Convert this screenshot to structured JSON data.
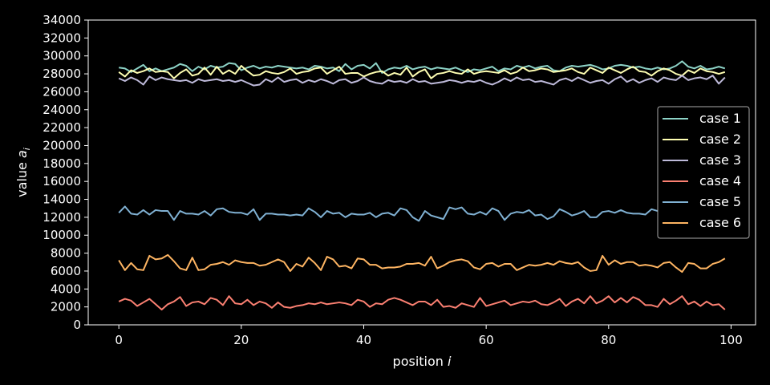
{
  "chart_data": {
    "type": "line",
    "xlabel": "position i",
    "ylabel": "value a_i",
    "xlim": [
      -5,
      104
    ],
    "ylim": [
      0,
      34000
    ],
    "xticks": [
      0,
      20,
      40,
      60,
      80,
      100
    ],
    "yticks": [
      0,
      2000,
      4000,
      6000,
      8000,
      10000,
      12000,
      14000,
      16000,
      18000,
      20000,
      22000,
      24000,
      26000,
      28000,
      30000,
      32000,
      34000
    ],
    "grid": false,
    "legend_position": "center-right",
    "series": [
      {
        "name": "case 1",
        "color": "#8dd3c7",
        "values": [
          28700,
          28600,
          28200,
          28600,
          29000,
          28300,
          28600,
          28300,
          28500,
          28700,
          29100,
          28900,
          28300,
          28800,
          28500,
          28900,
          28700,
          28800,
          29200,
          29100,
          28400,
          28700,
          28900,
          28600,
          28800,
          28700,
          28900,
          28800,
          28700,
          28600,
          28700,
          28500,
          28900,
          28800,
          28600,
          28700,
          28300,
          29100,
          28500,
          28900,
          29000,
          28600,
          29200,
          28100,
          28500,
          28700,
          28600,
          28900,
          28500,
          28700,
          28800,
          28500,
          28700,
          28600,
          28500,
          28700,
          28400,
          28200,
          28500,
          28400,
          28600,
          28800,
          28300,
          28600,
          28500,
          28900,
          28700,
          28900,
          28600,
          28800,
          28900,
          28400,
          28300,
          28700,
          28900,
          28800,
          28900,
          29000,
          28800,
          28500,
          28600,
          28900,
          29000,
          28900,
          28700,
          28800,
          28600,
          28500,
          28700,
          28500,
          28600,
          28900,
          29400,
          28800,
          28600,
          28900,
          28500,
          28600,
          28800,
          28600
        ]
      },
      {
        "name": "case 2",
        "color": "#ffffb3",
        "values": [
          28200,
          27700,
          28400,
          28100,
          28300,
          28600,
          28200,
          28300,
          28200,
          27500,
          28100,
          28500,
          27800,
          28000,
          28700,
          27900,
          28800,
          28000,
          28400,
          28000,
          28900,
          28300,
          27800,
          27900,
          28300,
          28100,
          28000,
          28200,
          28600,
          28000,
          28200,
          28300,
          28600,
          28700,
          28000,
          28400,
          28800,
          28000,
          28100,
          28100,
          27700,
          28000,
          28200,
          28300,
          27800,
          28100,
          27900,
          28700,
          27700,
          28200,
          28500,
          27500,
          28000,
          28100,
          28300,
          28100,
          28000,
          28500,
          28000,
          28200,
          28300,
          28200,
          28100,
          28400,
          28000,
          28200,
          28700,
          28300,
          28400,
          28600,
          28500,
          28200,
          28300,
          28400,
          28600,
          28200,
          28000,
          28700,
          28400,
          28100,
          28700,
          28400,
          28100,
          28500,
          28800,
          28300,
          28200,
          27800,
          28300,
          28600,
          28400,
          28000,
          27800,
          28400,
          28100,
          28600,
          28300,
          28200,
          28000,
          28200
        ]
      },
      {
        "name": "case 3",
        "color": "#bebada",
        "values": [
          27500,
          27200,
          27600,
          27300,
          26800,
          27700,
          27300,
          27600,
          27400,
          27300,
          27200,
          27300,
          27000,
          27400,
          27200,
          27300,
          27400,
          27200,
          27300,
          27100,
          27300,
          27000,
          26700,
          26800,
          27400,
          27100,
          27600,
          27100,
          27300,
          27400,
          27000,
          27300,
          27100,
          27400,
          27200,
          26900,
          27300,
          27400,
          27000,
          27200,
          27600,
          27200,
          27000,
          26900,
          27300,
          27100,
          27200,
          27000,
          27400,
          27100,
          27200,
          26900,
          27000,
          27100,
          27300,
          27200,
          27000,
          27200,
          27100,
          27300,
          27000,
          26800,
          27100,
          27500,
          27200,
          27600,
          27300,
          27400,
          27100,
          27200,
          27000,
          26800,
          27300,
          27500,
          27200,
          27600,
          27300,
          27000,
          27200,
          27300,
          26900,
          27400,
          27700,
          27100,
          27400,
          27000,
          27300,
          27500,
          27100,
          27600,
          27400,
          27300,
          27800,
          27300,
          27500,
          27600,
          27400,
          27800,
          26900,
          27600
        ]
      },
      {
        "name": "case 4",
        "color": "#fb8072",
        "values": [
          2600,
          2900,
          2700,
          2100,
          2500,
          2900,
          2300,
          1700,
          2300,
          2600,
          3100,
          2100,
          2500,
          2600,
          2300,
          3000,
          2800,
          2200,
          3200,
          2400,
          2300,
          2800,
          2200,
          2600,
          2400,
          1900,
          2500,
          2000,
          1900,
          2100,
          2200,
          2400,
          2300,
          2500,
          2300,
          2400,
          2500,
          2400,
          2200,
          2800,
          2600,
          2000,
          2400,
          2300,
          2800,
          3000,
          2800,
          2500,
          2200,
          2600,
          2600,
          2200,
          2800,
          2000,
          2100,
          1900,
          2400,
          2200,
          2000,
          3000,
          2100,
          2300,
          2500,
          2700,
          2200,
          2400,
          2600,
          2500,
          2700,
          2300,
          2200,
          2500,
          2900,
          2100,
          2600,
          2900,
          2400,
          3200,
          2400,
          2700,
          3200,
          2500,
          3000,
          2500,
          3100,
          2800,
          2200,
          2200,
          2000,
          2900,
          2300,
          2700,
          3200,
          2300,
          2600,
          2100,
          2600,
          2200,
          2300,
          1700
        ]
      },
      {
        "name": "case 5",
        "color": "#80b1d3",
        "values": [
          12500,
          13200,
          12400,
          12300,
          12800,
          12300,
          12800,
          12700,
          12700,
          11700,
          12700,
          12400,
          12400,
          12300,
          12700,
          12200,
          12900,
          13000,
          12600,
          12500,
          12500,
          12300,
          12900,
          11700,
          12400,
          12400,
          12300,
          12300,
          12200,
          12300,
          12200,
          13000,
          12600,
          12000,
          12700,
          12400,
          12500,
          12000,
          12400,
          12300,
          12300,
          12500,
          12000,
          12400,
          12500,
          12200,
          13000,
          12800,
          12000,
          11600,
          12700,
          12200,
          12000,
          11800,
          13100,
          12900,
          13100,
          12400,
          12300,
          12600,
          12300,
          13000,
          12700,
          11700,
          12400,
          12600,
          12500,
          12800,
          12200,
          12300,
          11800,
          12100,
          12900,
          12600,
          12200,
          12400,
          12700,
          12000,
          12000,
          12600,
          12700,
          12500,
          12800,
          12500,
          12400,
          12400,
          12300,
          12900,
          12700,
          12500,
          12700,
          12900,
          12400,
          12700,
          12200,
          12700,
          12900,
          12100,
          12500,
          12800
        ]
      },
      {
        "name": "case 6",
        "color": "#fdb462",
        "values": [
          7200,
          6100,
          6900,
          6200,
          6100,
          7700,
          7300,
          7400,
          7800,
          7100,
          6300,
          6100,
          7500,
          6100,
          6200,
          6700,
          6800,
          7000,
          6700,
          7200,
          7000,
          6900,
          6900,
          6600,
          6700,
          7000,
          7300,
          7000,
          6000,
          6800,
          6500,
          7500,
          6900,
          6100,
          7600,
          7300,
          6500,
          6600,
          6300,
          7400,
          7300,
          6700,
          6700,
          6300,
          6400,
          6400,
          6500,
          6800,
          6800,
          6900,
          6600,
          7600,
          6300,
          6600,
          7000,
          7200,
          7300,
          7100,
          6400,
          6200,
          6800,
          6900,
          6500,
          6800,
          6800,
          6100,
          6400,
          6700,
          6600,
          6700,
          6900,
          6700,
          7100,
          6900,
          6800,
          7000,
          6400,
          6000,
          6100,
          7700,
          6700,
          7200,
          6800,
          7000,
          7000,
          6600,
          6700,
          6600,
          6400,
          6900,
          7000,
          6400,
          5900,
          6900,
          6800,
          6300,
          6300,
          6800,
          7000,
          7400
        ]
      }
    ]
  }
}
